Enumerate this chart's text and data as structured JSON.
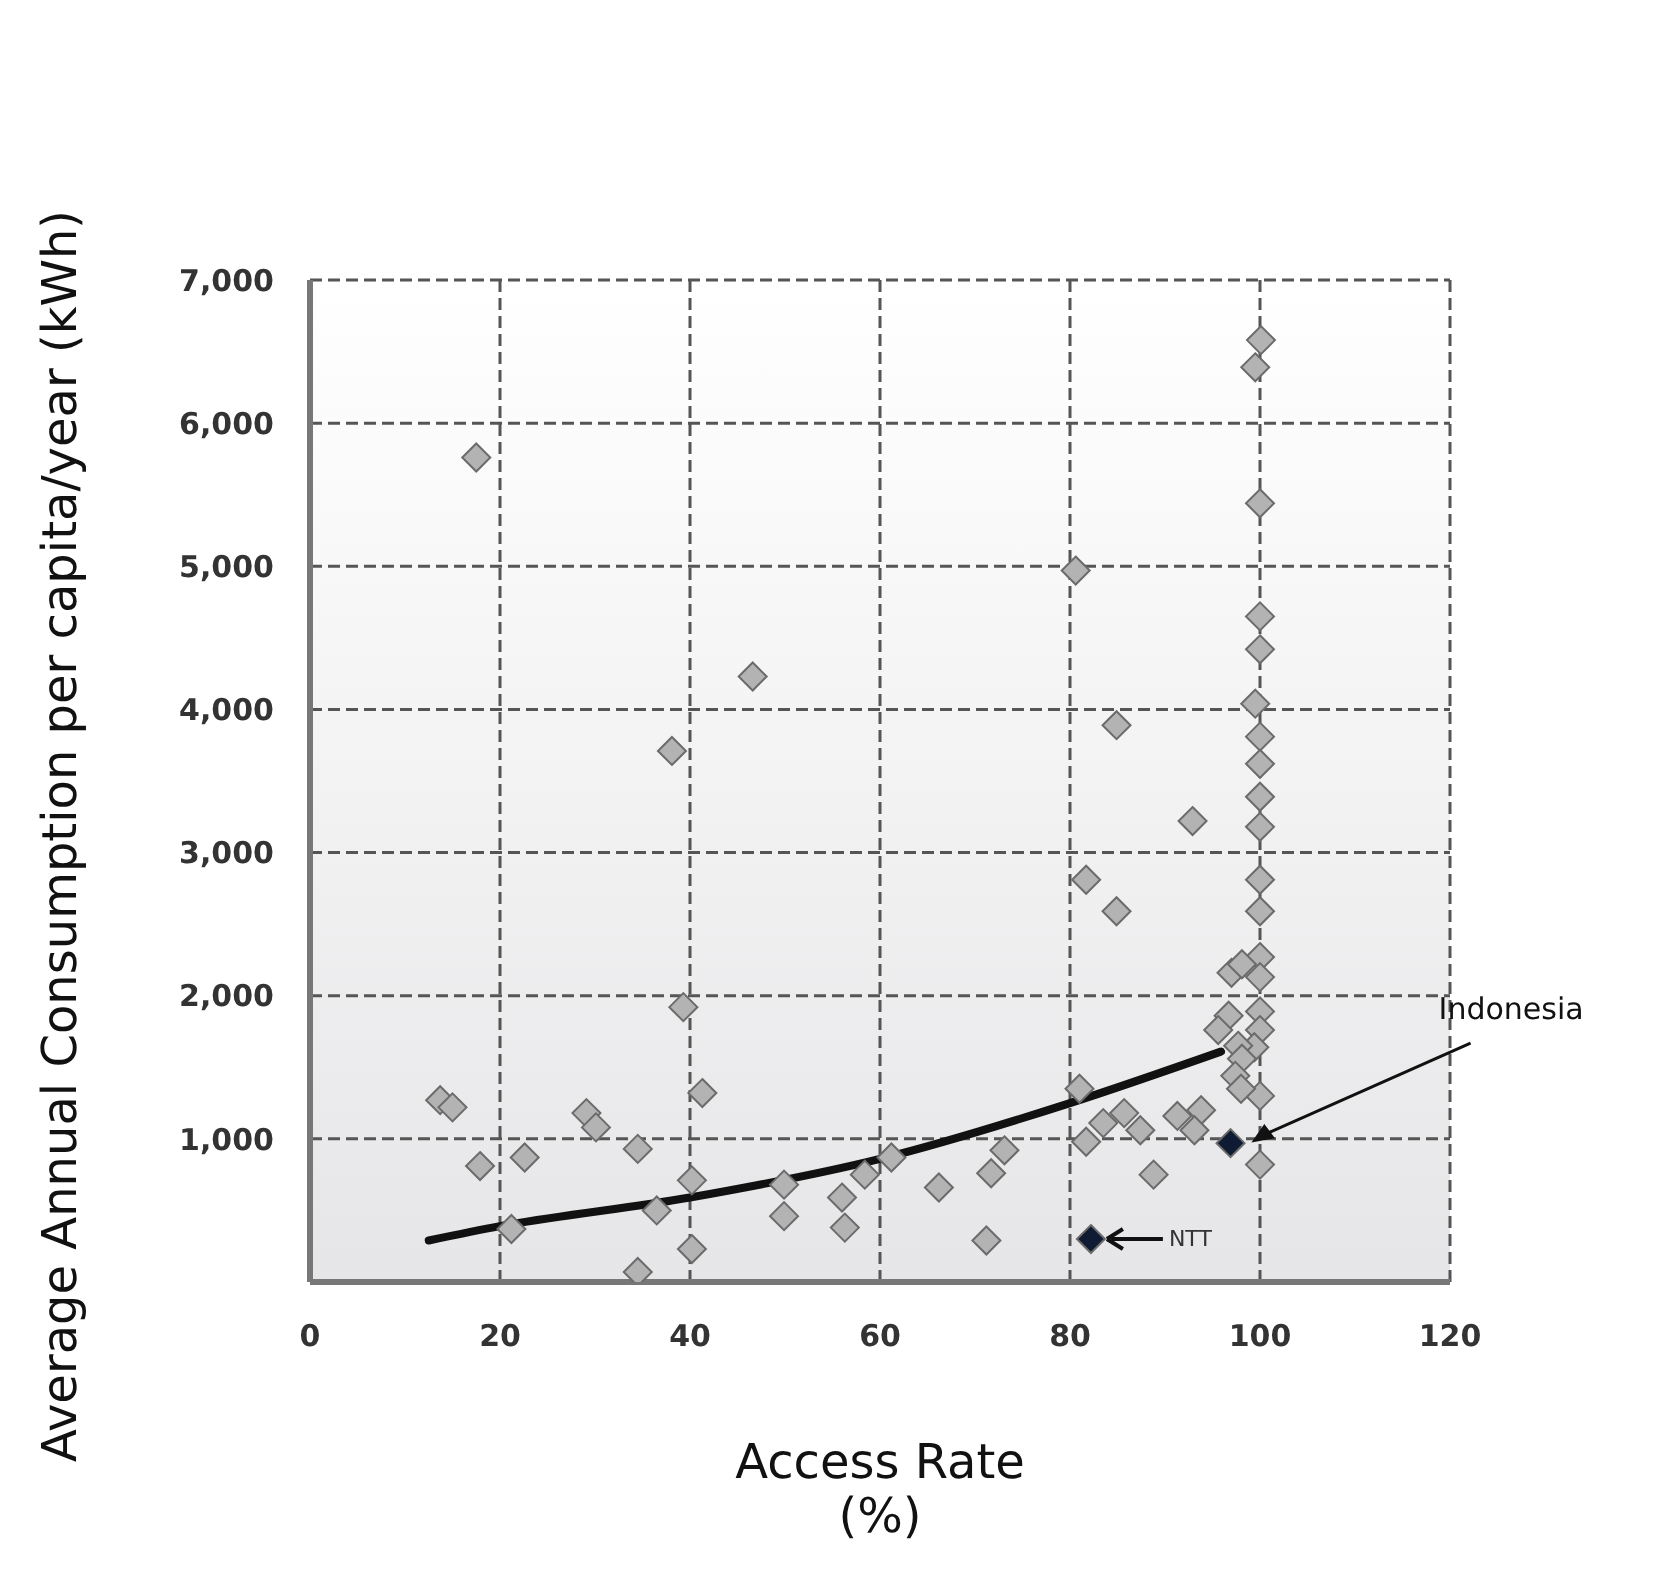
{
  "chart_data": {
    "type": "scatter",
    "xlabel": "Access Rate (%)",
    "ylabel": "Average Annual Consumption per capita/year (kWh)",
    "xlim": [
      0,
      120
    ],
    "xticks": [
      0,
      20,
      40,
      60,
      80,
      100,
      120
    ],
    "ylim": [
      0,
      7000
    ],
    "yticks": [
      {
        "value": 1000,
        "label": "1,000"
      },
      {
        "value": 2000,
        "label": "2,000"
      },
      {
        "value": 3000,
        "label": "3,000"
      },
      {
        "value": 4000,
        "label": "4,000"
      },
      {
        "value": 5000,
        "label": "5,000"
      },
      {
        "value": 6000,
        "label": "6,000"
      },
      {
        "value": 7000,
        "label": "7,000"
      }
    ],
    "grid": true,
    "marker": "diamond",
    "series": [
      {
        "color": "#b3b3b3",
        "x": [
          17.5,
          46.6,
          38.1,
          39.3,
          13.7,
          15.0,
          29.1,
          30.1,
          41.3,
          17.9,
          22.6,
          34.5,
          40.2,
          49.9,
          58.4,
          56.0,
          49.9,
          56.3,
          36.5,
          21.2,
          40.2,
          34.5,
          61.2,
          100.1,
          99.5,
          100,
          80.6,
          100,
          100,
          99.5,
          100,
          100,
          100,
          100,
          84.9,
          92.9,
          81.7,
          84.9,
          100,
          100,
          100,
          100,
          100,
          100,
          99.4,
          100,
          100,
          97.0,
          98.1,
          96.7,
          95.6,
          97.7,
          98.1,
          97.4,
          98.0,
          81.0,
          81.7,
          83.5,
          85.7,
          87.4,
          88.8,
          91.3,
          93.8,
          93.1,
          73.1,
          71.7,
          66.2,
          71.2
        ],
        "values": [
          5760,
          4230,
          3710,
          1920,
          1270,
          1220,
          1180,
          1080,
          1320,
          810,
          870,
          930,
          710,
          680,
          750,
          590,
          460,
          380,
          500,
          370,
          230,
          70,
          870,
          6580,
          6390,
          5440,
          4970,
          4650,
          4420,
          4040,
          3810,
          3620,
          3390,
          3180,
          3890,
          3220,
          2810,
          2590,
          2810,
          2590,
          2270,
          2130,
          1890,
          1760,
          1640,
          1300,
          820,
          2160,
          2220,
          1860,
          1760,
          1650,
          1560,
          1440,
          1350,
          1350,
          980,
          1110,
          1180,
          1060,
          750,
          1160,
          1200,
          1060,
          920,
          760,
          660,
          290
        ]
      },
      {
        "color": "#0f1b33",
        "x": [
          96.9,
          82.2
        ],
        "values": [
          970,
          300
        ]
      },
      {
        "type": "line",
        "marker": "none",
        "color": "#111111",
        "x": [
          12.5,
          20,
          40,
          60,
          80,
          95.9
        ],
        "values": [
          290,
          390,
          590,
          860,
          1250,
          1610
        ]
      }
    ],
    "annotations": [
      "Indonesia",
      "NTT"
    ]
  }
}
